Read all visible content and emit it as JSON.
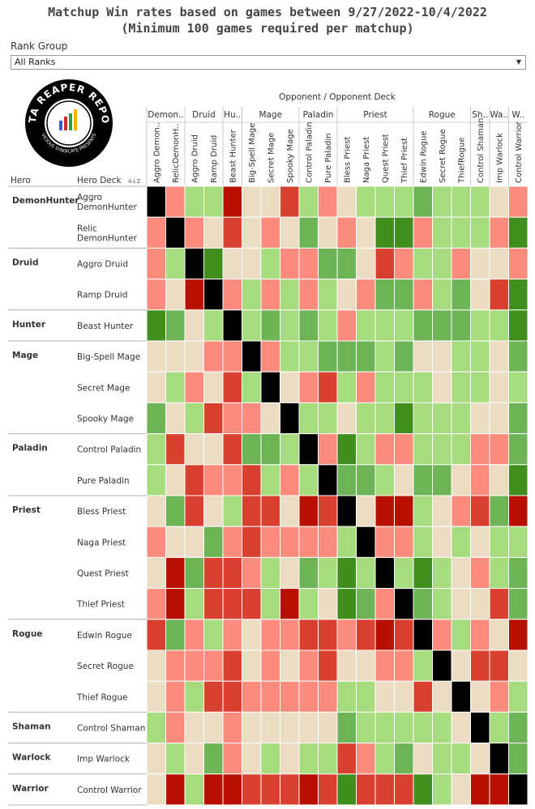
{
  "header": {
    "title": "Matchup Win rates based on games between 9/27/2022-10/4/2022",
    "subtitle": "(Minimum 100 games required per matchup)"
  },
  "filter": {
    "label": "Rank Group",
    "value": "All Ranks"
  },
  "logo": {
    "text": "DATA REAPER REPORT",
    "subtext": "VICIOUS SYNDICATE PRESENTS"
  },
  "chart_data": {
    "type": "heatmap",
    "column_title": "Opponent / Opponent Deck",
    "row_header_hero": "Hero",
    "row_header_deck": "Hero Deck",
    "sort_indicator": "A↓Z",
    "column_groups": [
      {
        "label": "Demon..",
        "span": 2
      },
      {
        "label": "Druid",
        "span": 2
      },
      {
        "label": "Hu..",
        "span": 1
      },
      {
        "label": "Mage",
        "span": 3
      },
      {
        "label": "Paladin",
        "span": 2
      },
      {
        "label": "Priest",
        "span": 4
      },
      {
        "label": "Rogue",
        "span": 3
      },
      {
        "label": "Sh..",
        "span": 1
      },
      {
        "label": "Wa..",
        "span": 1
      },
      {
        "label": "W..",
        "span": 1
      }
    ],
    "columns": [
      "Aggro Demon..",
      "RelicDemonH..",
      "Aggro Druid",
      "Ramp Druid",
      "Beast Hunter",
      "Big-Spell Mage",
      "Secret Mage",
      "Spooky Mage",
      "Control Paladin",
      "Pure Paladin",
      "Bless Priest",
      "Naga Priest",
      "Quest Priest",
      "Thief Priest",
      "Edwin Rogue",
      "Secret Rogue",
      "ThiefRogue",
      "Control Shaman",
      "Imp Warlock",
      "Control Warrior"
    ],
    "hero_groups": [
      {
        "hero": "DemonHunter",
        "decks": [
          "Aggro\nDemonHunter",
          "Relic\nDemonHunter"
        ]
      },
      {
        "hero": "Druid",
        "decks": [
          "Aggro Druid",
          "Ramp Druid"
        ]
      },
      {
        "hero": "Hunter",
        "decks": [
          "Beast Hunter"
        ]
      },
      {
        "hero": "Mage",
        "decks": [
          "Big-Spell Mage",
          "Secret Mage",
          "Spooky Mage"
        ]
      },
      {
        "hero": "Paladin",
        "decks": [
          "Control Paladin",
          "Pure Paladin"
        ]
      },
      {
        "hero": "Priest",
        "decks": [
          "Bless Priest",
          "Naga Priest",
          "Quest Priest",
          "Thief Priest"
        ]
      },
      {
        "hero": "Rogue",
        "decks": [
          "Edwin Rogue",
          "Secret Rogue",
          "Thief Rogue"
        ]
      },
      {
        "hero": "Shaman",
        "decks": [
          "Control Shaman"
        ]
      },
      {
        "hero": "Warlock",
        "decks": [
          "Imp Warlock"
        ]
      },
      {
        "hero": "Warrior",
        "decks": [
          "Control Warrior"
        ]
      }
    ],
    "color_scale": {
      "levels": [
        -3,
        -2,
        -1,
        0,
        1,
        2,
        3
      ],
      "colors": [
        "#b81000",
        "#d94030",
        "#fb8b7c",
        "#ecdcc4",
        "#a6dc7e",
        "#6cb455",
        "#3f8e1e"
      ],
      "mirror_color": "#000000"
    },
    "values": [
      [
        9,
        -1,
        1,
        1,
        -3,
        0,
        0,
        -2,
        1,
        -1,
        0,
        1,
        1,
        1,
        2,
        1,
        1,
        1,
        0,
        -1
      ],
      [
        -1,
        9,
        -1,
        0,
        -2,
        0,
        -1,
        0,
        2,
        0,
        -1,
        0,
        3,
        3,
        -1,
        1,
        1,
        1,
        -1,
        3
      ],
      [
        -1,
        1,
        9,
        3,
        0,
        0,
        1,
        -1,
        -1,
        2,
        2,
        0,
        -2,
        -1,
        1,
        1,
        -1,
        0,
        0,
        -1
      ],
      [
        -1,
        0,
        -3,
        9,
        -1,
        1,
        -1,
        1,
        -1,
        1,
        0,
        -1,
        2,
        2,
        -1,
        1,
        2,
        0,
        -2,
        3
      ],
      [
        3,
        2,
        0,
        1,
        9,
        1,
        2,
        1,
        2,
        1,
        -1,
        1,
        1,
        1,
        2,
        2,
        2,
        1,
        1,
        3
      ],
      [
        0,
        0,
        0,
        -1,
        -1,
        9,
        -1,
        1,
        1,
        2,
        2,
        2,
        1,
        2,
        0,
        0,
        1,
        1,
        0,
        2
      ],
      [
        0,
        1,
        -1,
        0,
        -2,
        1,
        9,
        0,
        -1,
        -2,
        1,
        -1,
        1,
        1,
        1,
        0,
        1,
        1,
        0,
        1
      ],
      [
        2,
        0,
        1,
        -2,
        -1,
        -1,
        0,
        9,
        1,
        1,
        0,
        1,
        1,
        3,
        1,
        1,
        1,
        0,
        0,
        2
      ],
      [
        1,
        -2,
        0,
        0,
        -2,
        2,
        2,
        1,
        9,
        -1,
        3,
        1,
        -1,
        -1,
        1,
        1,
        1,
        -1,
        -1,
        2
      ],
      [
        1,
        0,
        -2,
        -1,
        -1,
        -2,
        1,
        -1,
        1,
        9,
        2,
        2,
        1,
        0,
        2,
        2,
        0,
        -1,
        0,
        3
      ],
      [
        0,
        2,
        -2,
        0,
        1,
        -2,
        -2,
        0,
        -3,
        -2,
        9,
        0,
        -3,
        -3,
        1,
        0,
        -1,
        -2,
        2,
        -3
      ],
      [
        -1,
        0,
        0,
        2,
        -1,
        -2,
        -1,
        -1,
        -1,
        -1,
        1,
        9,
        -1,
        -1,
        1,
        0,
        1,
        0,
        1,
        1
      ],
      [
        0,
        -3,
        2,
        -2,
        -2,
        -1,
        1,
        0,
        2,
        1,
        3,
        1,
        9,
        1,
        3,
        1,
        0,
        -1,
        1,
        2
      ],
      [
        -1,
        -3,
        1,
        -2,
        -2,
        -2,
        1,
        -3,
        1,
        0,
        3,
        2,
        -1,
        9,
        2,
        1,
        0,
        0,
        -2,
        2
      ],
      [
        -2,
        2,
        -1,
        1,
        -1,
        0,
        -1,
        -1,
        -2,
        -2,
        -1,
        -2,
        -3,
        -2,
        9,
        -1,
        1,
        -1,
        0,
        -3
      ],
      [
        0,
        -1,
        -1,
        -1,
        -2,
        0,
        -1,
        0,
        -1,
        -2,
        0,
        0,
        -1,
        -1,
        1,
        9,
        0,
        -2,
        -2,
        0
      ],
      [
        0,
        -1,
        1,
        -2,
        -2,
        -1,
        -1,
        -1,
        -1,
        -1,
        1,
        1,
        0,
        0,
        -2,
        0,
        9,
        0,
        -1,
        1
      ],
      [
        1,
        -1,
        0,
        0,
        -1,
        0,
        0,
        0,
        0,
        0,
        2,
        1,
        1,
        1,
        1,
        1,
        0,
        9,
        1,
        2
      ],
      [
        0,
        1,
        0,
        2,
        -1,
        0,
        1,
        0,
        1,
        1,
        -2,
        -1,
        1,
        2,
        0,
        1,
        1,
        0,
        9,
        2
      ],
      [
        0,
        -3,
        1,
        -3,
        -3,
        -2,
        -2,
        -2,
        -3,
        -2,
        3,
        -2,
        -2,
        -2,
        3,
        1,
        0,
        -3,
        -3,
        9
      ]
    ]
  }
}
